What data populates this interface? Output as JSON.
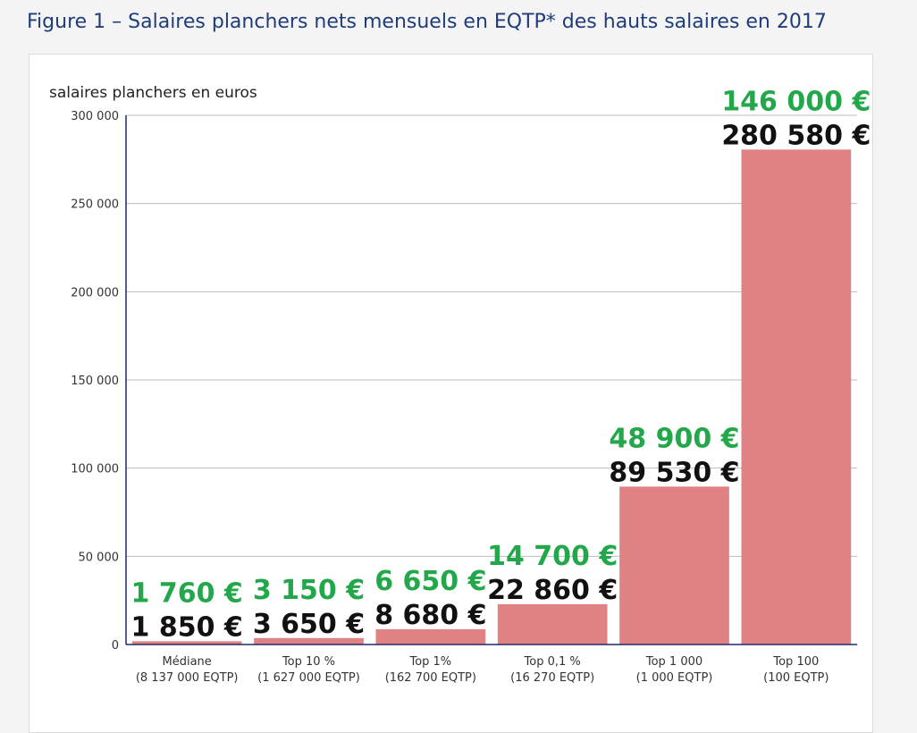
{
  "figure_title": "Figure 1 – Salaires planchers nets mensuels en EQTP* des hauts salaires en 2017",
  "colors": {
    "bar": "#e08283",
    "green_label": "#22a84a",
    "black_label": "#111111",
    "axis": "#1f2a6b",
    "grid": "#bdbdbd",
    "title": "#1f3d7a"
  },
  "chart_data": {
    "type": "bar",
    "ylabel": "salaires planchers en euros",
    "ylim": [
      0,
      300000
    ],
    "yticks": [
      0,
      50000,
      100000,
      150000,
      200000,
      250000,
      300000
    ],
    "ytick_labels": [
      "0",
      "50 000",
      "100 000",
      "150 000",
      "200 000",
      "250 000",
      "300 000"
    ],
    "grid": true,
    "categories": [
      [
        "Médiane",
        "(8 137 000 EQTP)"
      ],
      [
        "Top 10 %",
        "(1 627 000 EQTP)"
      ],
      [
        "Top 1%",
        "(162 700 EQTP)"
      ],
      [
        "Top 0,1 %",
        "(16 270 EQTP)"
      ],
      [
        "Top 1 000",
        "(1 000 EQTP)"
      ],
      [
        "Top 100",
        "(100 EQTP)"
      ]
    ],
    "values": [
      1850,
      3650,
      8680,
      22860,
      89530,
      280580
    ],
    "value_labels": [
      "1 850 €",
      "3 650 €",
      "8 680 €",
      "22 860 €",
      "89 530 €",
      "280 580 €"
    ],
    "annotations": [
      "1 760 €",
      "3 150 €",
      "6 650 €",
      "14 700 €",
      "48 900 €",
      "146 000 €"
    ]
  }
}
